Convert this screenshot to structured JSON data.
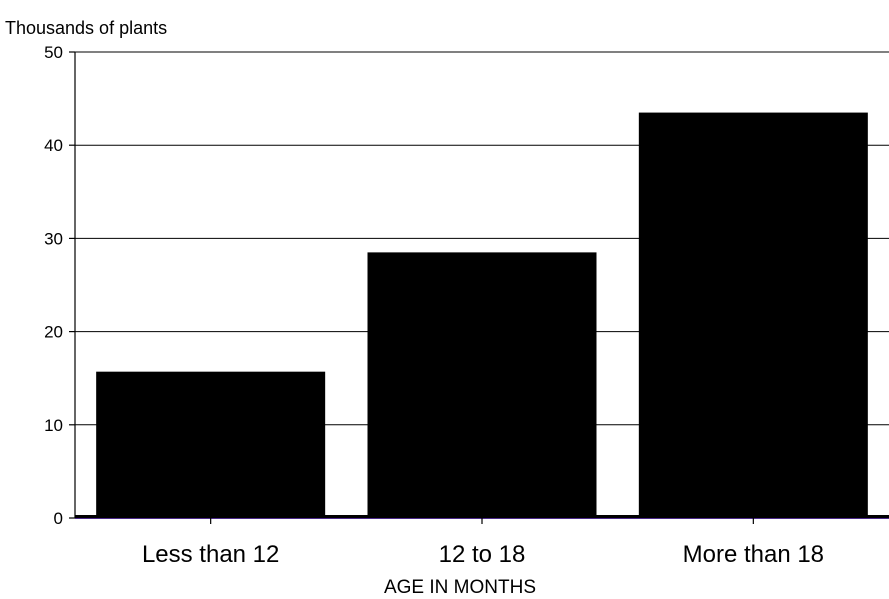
{
  "chart_data": {
    "type": "bar",
    "title": "",
    "ylabel": "Thousands of plants",
    "xlabel": "AGE IN MONTHS",
    "categories": [
      "Less than 12",
      "12 to 18",
      "More than 18"
    ],
    "values": [
      15.7,
      28.5,
      43.5
    ],
    "ylim": [
      0,
      50
    ],
    "yticks": [
      "0",
      "10",
      "20",
      "30",
      "40",
      "50"
    ],
    "grid": true,
    "legend": "none",
    "colors": {
      "bar": "#000000",
      "baseline": "#4b2a8a"
    }
  }
}
